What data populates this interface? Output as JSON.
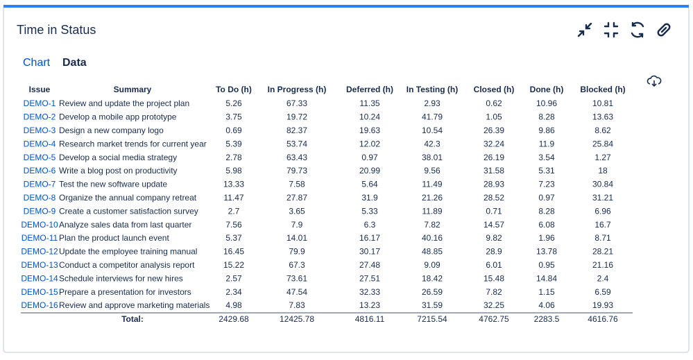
{
  "header": {
    "title": "Time in Status"
  },
  "tabs": [
    "Chart",
    "Data"
  ],
  "table": {
    "columns": [
      "Issue",
      "Summary",
      "To Do (h)",
      "In Progress (h)",
      "Deferred (h)",
      "In Testing (h)",
      "Closed (h)",
      "Done (h)",
      "Blocked (h)"
    ],
    "rows": [
      [
        "DEMO-1",
        "Review and update the project plan",
        "5.26",
        "67.33",
        "11.35",
        "2.93",
        "0.62",
        "10.96",
        "10.81"
      ],
      [
        "DEMO-2",
        "Develop a mobile app prototype",
        "3.75",
        "19.72",
        "10.24",
        "41.79",
        "1.05",
        "8.28",
        "13.63"
      ],
      [
        "DEMO-3",
        "Design a new company logo",
        "0.69",
        "82.37",
        "19.63",
        "10.54",
        "26.39",
        "9.86",
        "8.62"
      ],
      [
        "DEMO-4",
        "Research market trends for current year",
        "5.39",
        "53.74",
        "12.02",
        "42.3",
        "32.24",
        "11.9",
        "25.84"
      ],
      [
        "DEMO-5",
        "Develop a social media strategy",
        "2.78",
        "63.43",
        "0.97",
        "38.01",
        "26.19",
        "3.54",
        "1.27"
      ],
      [
        "DEMO-6",
        "Write a blog post on productivity",
        "5.98",
        "79.73",
        "20.99",
        "9.56",
        "31.58",
        "5.31",
        "18"
      ],
      [
        "DEMO-7",
        "Test the new software update",
        "13.33",
        "7.58",
        "5.64",
        "11.49",
        "28.93",
        "7.23",
        "30.84"
      ],
      [
        "DEMO-8",
        "Organize the annual company retreat",
        "11.47",
        "27.87",
        "31.9",
        "21.26",
        "28.52",
        "0.97",
        "31.21"
      ],
      [
        "DEMO-9",
        "Create a customer satisfaction survey",
        "2.7",
        "3.65",
        "5.33",
        "11.89",
        "0.71",
        "8.28",
        "6.96"
      ],
      [
        "DEMO-10",
        "Analyze sales data from last quarter",
        "7.56",
        "7.9",
        "6.3",
        "7.82",
        "14.57",
        "6.08",
        "16.7"
      ],
      [
        "DEMO-11",
        "Plan the product launch event",
        "5.37",
        "14.01",
        "16.17",
        "40.16",
        "9.82",
        "1.96",
        "8.71"
      ],
      [
        "DEMO-12",
        "Update the employee training manual",
        "16.45",
        "79.9",
        "30.17",
        "48.85",
        "28.9",
        "13.78",
        "28.21"
      ],
      [
        "DEMO-13",
        "Conduct a competitor analysis report",
        "15.22",
        "67.3",
        "27.48",
        "9.09",
        "6.01",
        "0.95",
        "21.16"
      ],
      [
        "DEMO-14",
        "Schedule interviews for new hires",
        "2.57",
        "73.61",
        "27.51",
        "18.42",
        "15.48",
        "14.84",
        "2.4"
      ],
      [
        "DEMO-15",
        "Prepare a presentation for investors",
        "2.34",
        "47.54",
        "32.33",
        "26.59",
        "7.82",
        "1.15",
        "6.59"
      ],
      [
        "DEMO-16",
        "Review and approve marketing materials",
        "4.98",
        "7.83",
        "13.23",
        "31.59",
        "32.25",
        "4.06",
        "19.93"
      ]
    ],
    "total": {
      "label": "Total:",
      "values": [
        "2429.68",
        "12425.78",
        "4816.11",
        "7215.54",
        "4762.75",
        "2283.5",
        "4616.76"
      ]
    }
  }
}
